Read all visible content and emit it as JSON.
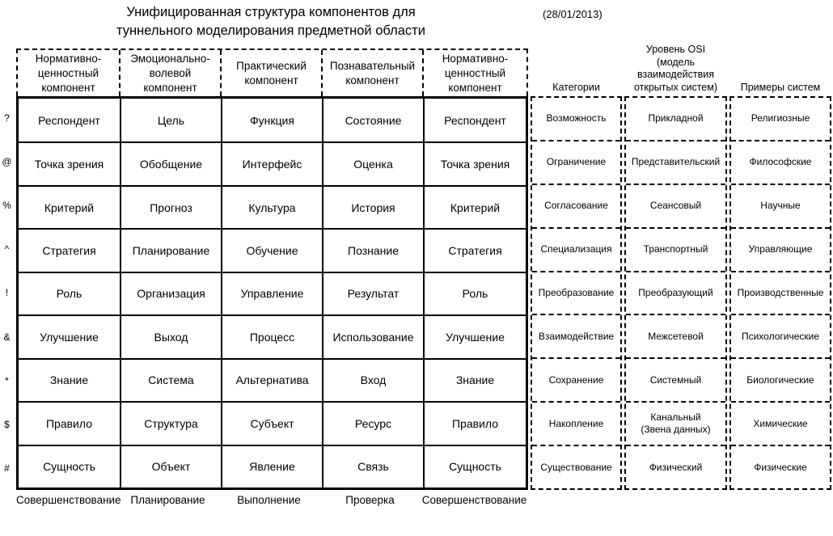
{
  "title": "Унифицированная структура компонентов для\nтуннельного моделирования предметной области",
  "date": "(28/01/2013)",
  "colors": {
    "ink": "#000000",
    "background": "#ffffff"
  },
  "main_table": {
    "headers": [
      "Нормативно-\nценностный\nкомпонент",
      "Эмоционально-\nволевой\nкомпонент",
      "Практический\nкомпонент",
      "Познавательный\nкомпонент",
      "Нормативно-\nценностный\nкомпонент"
    ],
    "row_symbols": [
      "?",
      "@",
      "%",
      "^",
      "!",
      "&",
      "*",
      "$",
      "#"
    ],
    "rows": [
      [
        "Респондент",
        "Цель",
        "Функция",
        "Состояние",
        "Респондент"
      ],
      [
        "Точка зрения",
        "Обобщение",
        "Интерфейс",
        "Оценка",
        "Точка зрения"
      ],
      [
        "Критерий",
        "Прогноз",
        "Культура",
        "История",
        "Критерий"
      ],
      [
        "Стратегия",
        "Планирование",
        "Обучение",
        "Познание",
        "Стратегия"
      ],
      [
        "Роль",
        "Организация",
        "Управление",
        "Результат",
        "Роль"
      ],
      [
        "Улучшение",
        "Выход",
        "Процесс",
        "Использование",
        "Улучшение"
      ],
      [
        "Знание",
        "Система",
        "Альтернатива",
        "Вход",
        "Знание"
      ],
      [
        "Правило",
        "Структура",
        "Субъект",
        "Ресурс",
        "Правило"
      ],
      [
        "Сущность",
        "Объект",
        "Явление",
        "Связь",
        "Сущность"
      ]
    ]
  },
  "right_panel": {
    "columns": [
      {
        "header": "Категории",
        "cells": [
          "Возможность",
          "Ограничение",
          "Согласование",
          "Специализация",
          "Преобразование",
          "Взаимодействие",
          "Сохранение",
          "Накопление",
          "Существование"
        ]
      },
      {
        "header": "Уровень OSI\n(модель\nвзаимодействия\nоткрытых систем)",
        "cells": [
          "Прикладной",
          "Представительский",
          "Сеансовый",
          "Транспортный",
          "Преобразующий",
          "Межсетевой",
          "Системный",
          "Канальный\n(Звена данных)",
          "Физический"
        ]
      },
      {
        "header": "Примеры систем",
        "cells": [
          "Религиозные",
          "Философские",
          "Научные",
          "Управляющие",
          "Производственные",
          "Психологические",
          "Биологические",
          "Химические",
          "Физические"
        ]
      }
    ]
  },
  "footer_labels": [
    "Совершенствование",
    "Планирование",
    "Выполнение",
    "Проверка",
    "Совершенствование"
  ]
}
